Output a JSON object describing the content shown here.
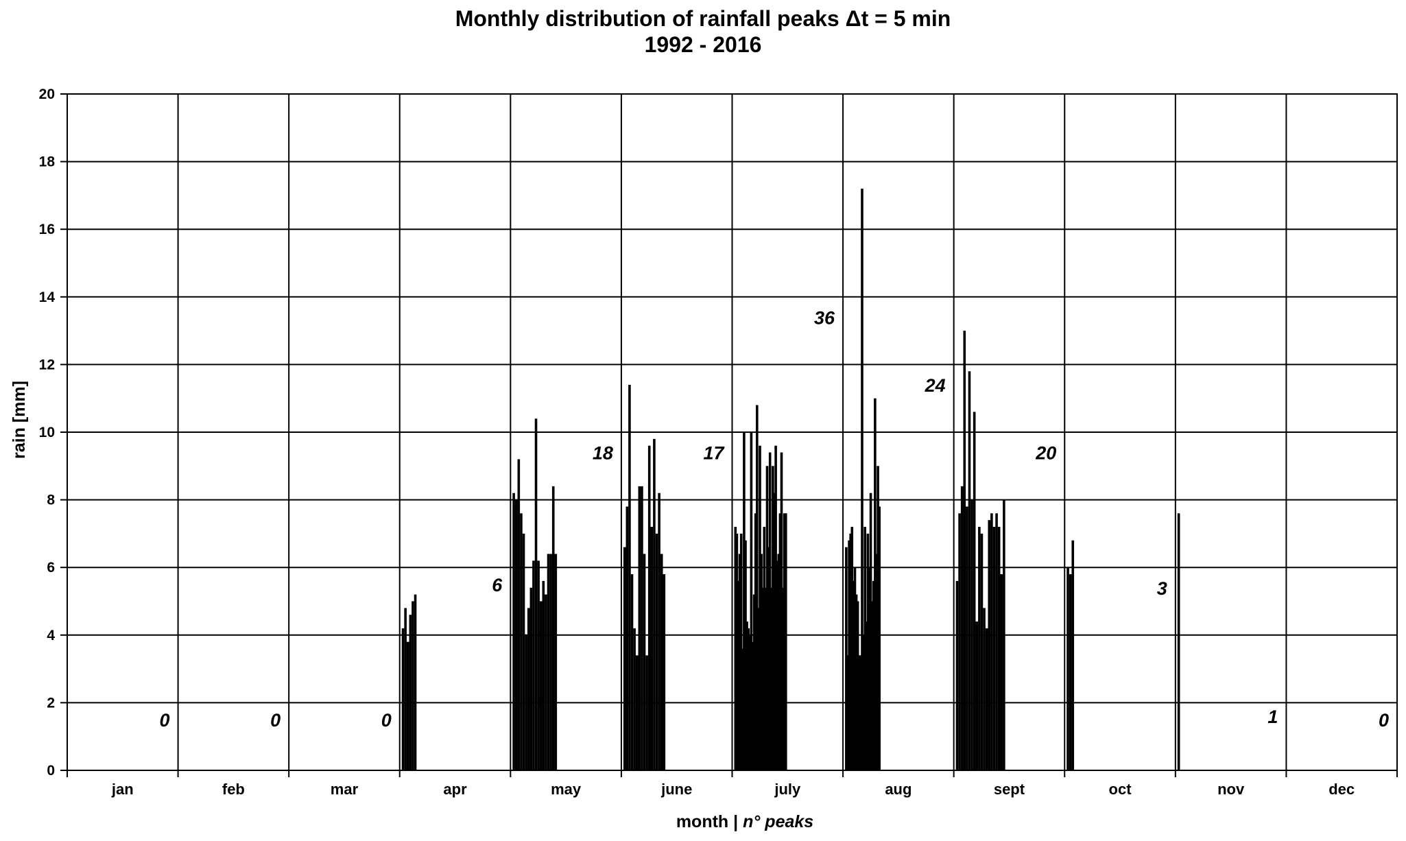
{
  "chart_data": {
    "type": "bar",
    "title": "Monthly distribution of rainfall peaks Δt = 5 min",
    "subtitle": "1992 - 2016",
    "xlabel": "month",
    "xlabel_separator": " | ",
    "xlabel_secondary": "n° peaks",
    "ylabel": "rain [mm]",
    "ylim": [
      0,
      20
    ],
    "yticks": [
      0,
      2,
      4,
      6,
      8,
      10,
      12,
      14,
      16,
      18,
      20
    ],
    "grid": true,
    "bar_color": "#000000",
    "categories": [
      "jan",
      "feb",
      "mar",
      "apr",
      "may",
      "june",
      "july",
      "aug",
      "sept",
      "oct",
      "nov",
      "dec"
    ],
    "peak_counts": [
      "0",
      "0",
      "0",
      "6",
      "18",
      "17",
      "36",
      "24",
      "20",
      "3",
      "1",
      "0"
    ],
    "count_label_y": [
      1.5,
      1.5,
      1.5,
      5.5,
      9.4,
      9.4,
      13.4,
      11.4,
      9.4,
      5.4,
      1.6,
      1.5
    ],
    "peaks": [
      [],
      [],
      [],
      [
        4.2,
        4.8,
        3.8,
        4.6,
        5.0,
        5.2
      ],
      [
        8.2,
        8.0,
        9.2,
        7.6,
        7.0,
        4.0,
        4.8,
        5.4,
        6.2,
        10.4,
        6.2,
        5.0,
        5.6,
        5.2,
        6.4,
        6.4,
        8.4,
        6.4
      ],
      [
        6.6,
        7.8,
        11.4,
        5.8,
        4.2,
        3.4,
        8.4,
        8.4,
        6.4,
        3.4,
        9.6,
        7.2,
        9.8,
        7.0,
        8.2,
        6.4,
        5.8
      ],
      [
        7.2,
        7.0,
        5.6,
        6.4,
        7.0,
        3.6,
        10.0,
        6.8,
        4.4,
        4.2,
        4.0,
        10.0,
        3.8,
        5.2,
        7.6,
        10.8,
        4.8,
        9.6,
        6.4,
        5.4,
        7.2,
        5.4,
        9.0,
        6.6,
        9.4,
        5.4,
        9.0,
        8.2,
        9.6,
        6.2,
        6.4,
        7.6,
        9.4,
        5.4,
        7.6,
        7.6
      ],
      [
        6.6,
        3.4,
        6.8,
        7.0,
        7.2,
        5.6,
        6.0,
        5.2,
        5.0,
        3.4,
        3.4,
        17.2,
        4.0,
        7.2,
        4.4,
        7.0,
        6.0,
        8.2,
        5.0,
        5.6,
        11.0,
        6.4,
        9.0,
        7.8
      ],
      [
        5.6,
        7.6,
        8.4,
        13.0,
        7.8,
        11.8,
        8.0,
        10.6,
        4.4,
        7.2,
        7.0,
        4.8,
        4.2,
        7.4,
        7.6,
        7.2,
        7.6,
        7.2,
        5.8,
        8.0
      ],
      [
        6.0,
        5.8,
        6.8
      ],
      [
        7.6
      ],
      []
    ]
  }
}
